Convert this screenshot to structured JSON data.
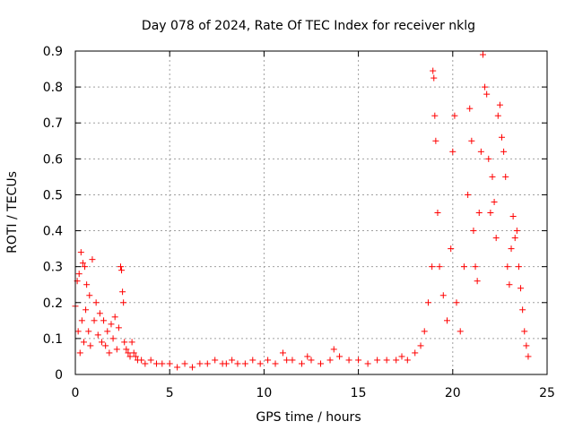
{
  "chart_data": {
    "type": "scatter",
    "title": "Day 078 of 2024, Rate Of TEC Index for receiver nklg",
    "xlabel": "GPS time / hours",
    "ylabel": "ROTI / TECUs",
    "xlim": [
      0,
      25
    ],
    "ylim": [
      0,
      0.9
    ],
    "xticks": [
      "0",
      "5",
      "10",
      "15",
      "20",
      "25"
    ],
    "yticks": [
      "0",
      "0.1",
      "0.2",
      "0.3",
      "0.4",
      "0.5",
      "0.6",
      "0.7",
      "0.8",
      "0.9"
    ],
    "grid": true,
    "marker": "+",
    "color": "#ff0000",
    "series": [
      {
        "name": "ROTI",
        "x": [
          0.0,
          0.1,
          0.15,
          0.2,
          0.25,
          0.3,
          0.35,
          0.4,
          0.45,
          0.5,
          0.55,
          0.6,
          0.7,
          0.75,
          0.8,
          0.9,
          1.0,
          1.1,
          1.2,
          1.3,
          1.4,
          1.5,
          1.6,
          1.7,
          1.8,
          1.9,
          2.0,
          2.1,
          2.2,
          2.3,
          2.4,
          2.45,
          2.5,
          2.55,
          2.6,
          2.7,
          2.8,
          2.9,
          3.0,
          3.1,
          3.2,
          3.3,
          3.5,
          3.7,
          4.0,
          4.3,
          4.6,
          5.0,
          5.4,
          5.8,
          6.2,
          6.6,
          7.0,
          7.4,
          7.8,
          8.0,
          8.3,
          8.6,
          9.0,
          9.4,
          9.8,
          10.2,
          10.6,
          11.0,
          11.2,
          11.5,
          12.0,
          12.3,
          12.5,
          13.0,
          13.5,
          13.7,
          14.0,
          14.5,
          15.0,
          15.5,
          16.0,
          16.5,
          17.0,
          17.3,
          17.6,
          18.0,
          18.3,
          18.5,
          18.7,
          18.9,
          18.95,
          19.0,
          19.05,
          19.1,
          19.2,
          19.3,
          19.5,
          19.7,
          19.9,
          20.0,
          20.1,
          20.2,
          20.4,
          20.6,
          20.8,
          20.9,
          21.0,
          21.1,
          21.2,
          21.3,
          21.4,
          21.5,
          21.6,
          21.7,
          21.8,
          21.9,
          22.0,
          22.1,
          22.2,
          22.3,
          22.4,
          22.5,
          22.6,
          22.7,
          22.8,
          22.9,
          23.0,
          23.1,
          23.2,
          23.3,
          23.4,
          23.5,
          23.6,
          23.7,
          23.8,
          23.9,
          24.0
        ],
        "y": [
          0.19,
          0.26,
          0.12,
          0.28,
          0.06,
          0.34,
          0.15,
          0.31,
          0.09,
          0.3,
          0.18,
          0.25,
          0.12,
          0.22,
          0.08,
          0.32,
          0.15,
          0.2,
          0.11,
          0.17,
          0.09,
          0.15,
          0.08,
          0.12,
          0.06,
          0.14,
          0.1,
          0.16,
          0.07,
          0.13,
          0.3,
          0.29,
          0.23,
          0.2,
          0.09,
          0.07,
          0.06,
          0.05,
          0.09,
          0.06,
          0.05,
          0.04,
          0.04,
          0.03,
          0.04,
          0.03,
          0.03,
          0.03,
          0.02,
          0.03,
          0.02,
          0.03,
          0.03,
          0.04,
          0.03,
          0.03,
          0.04,
          0.03,
          0.03,
          0.04,
          0.03,
          0.04,
          0.03,
          0.06,
          0.04,
          0.04,
          0.03,
          0.05,
          0.04,
          0.03,
          0.04,
          0.07,
          0.05,
          0.04,
          0.04,
          0.03,
          0.04,
          0.04,
          0.04,
          0.05,
          0.04,
          0.06,
          0.08,
          0.12,
          0.2,
          0.3,
          0.845,
          0.825,
          0.72,
          0.65,
          0.45,
          0.3,
          0.22,
          0.15,
          0.35,
          0.62,
          0.72,
          0.2,
          0.12,
          0.3,
          0.5,
          0.74,
          0.65,
          0.4,
          0.3,
          0.26,
          0.45,
          0.62,
          0.89,
          0.8,
          0.78,
          0.6,
          0.45,
          0.55,
          0.48,
          0.38,
          0.72,
          0.75,
          0.66,
          0.62,
          0.55,
          0.3,
          0.25,
          0.35,
          0.44,
          0.38,
          0.4,
          0.3,
          0.24,
          0.18,
          0.12,
          0.08,
          0.05
        ]
      }
    ]
  }
}
